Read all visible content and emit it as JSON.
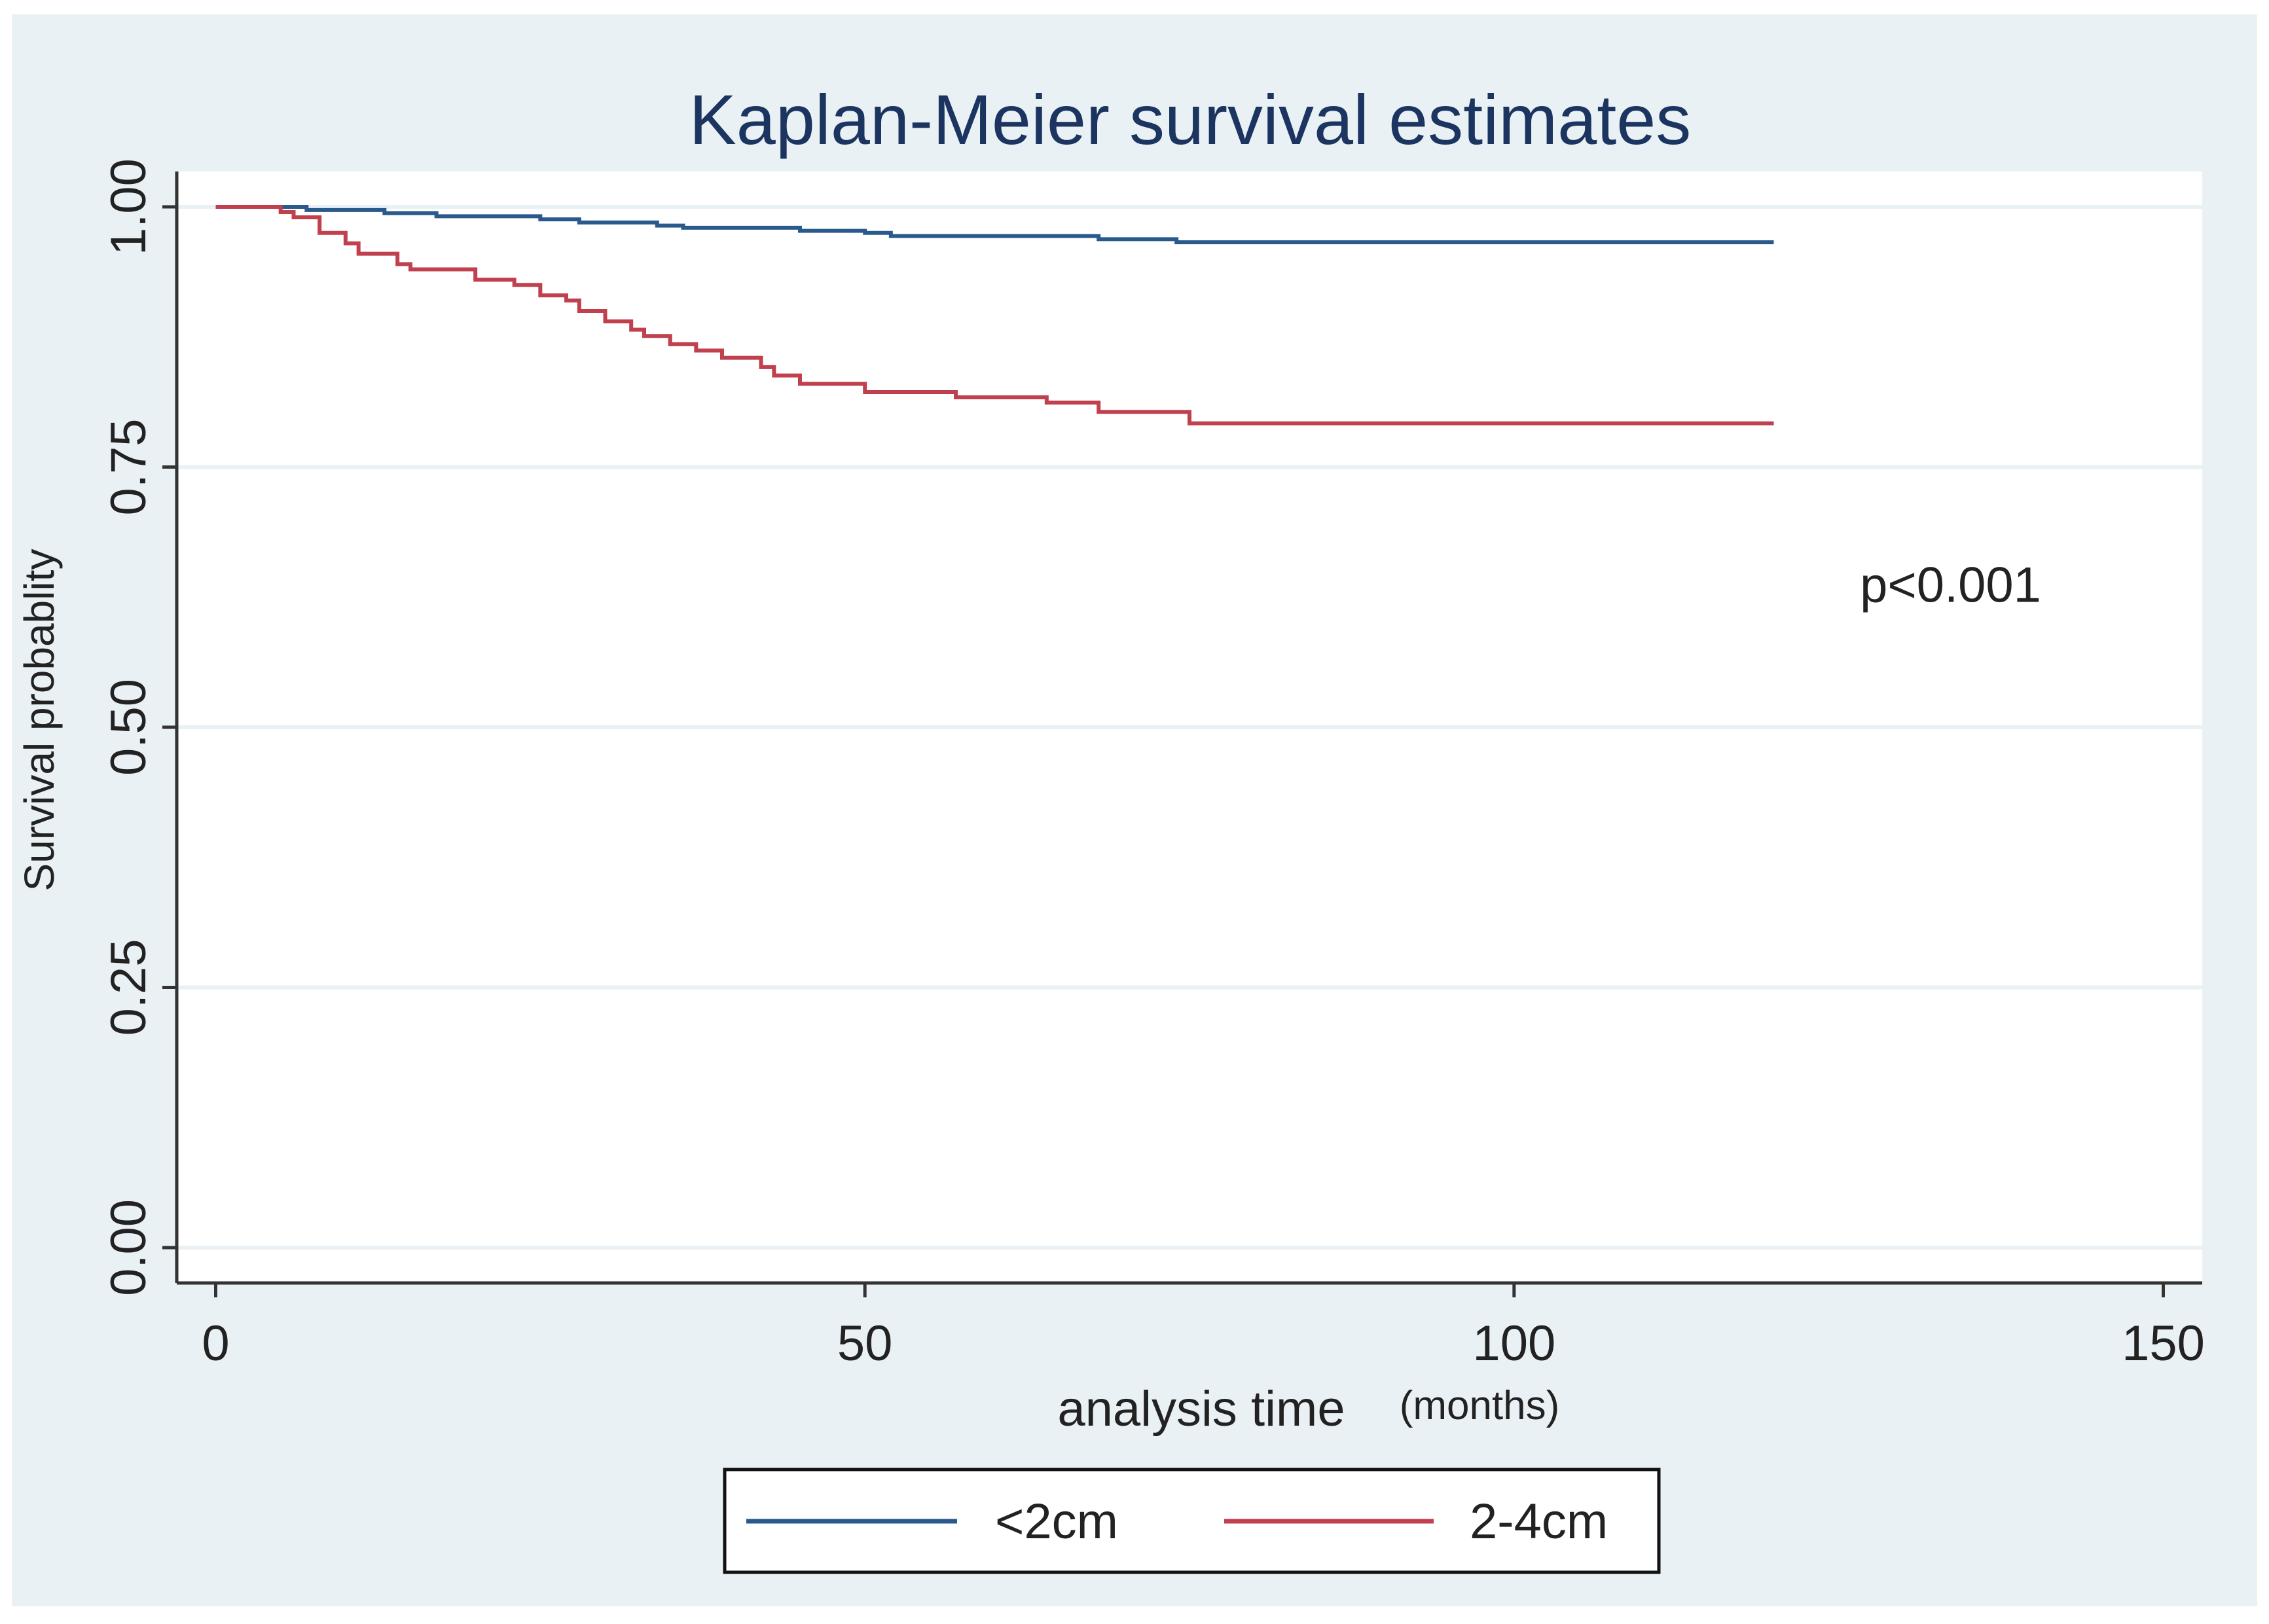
{
  "chart_data": {
    "type": "line",
    "title": "Kaplan-Meier survival estimates",
    "xlabel": "analysis time",
    "xlabel_unit": "(months)",
    "ylabel": "Survival probablity",
    "xlim": [
      -3,
      153
    ],
    "ylim": [
      -0.034,
      1.034
    ],
    "x_ticks": [
      0,
      50,
      100,
      150
    ],
    "x_tick_labels": [
      "0",
      "50",
      "100",
      "150"
    ],
    "y_ticks": [
      0,
      0.25,
      0.5,
      0.75,
      1.0
    ],
    "y_tick_labels": [
      "0.00",
      "0.25",
      "0.50",
      "0.75",
      "1.00"
    ],
    "grid": true,
    "legend_position": "bottom-center",
    "annotation": "p<0.001",
    "annotation_pos": [
      120,
      0.63
    ],
    "series": [
      {
        "name": "<2cm",
        "color": "#2a5a8c",
        "steps": [
          [
            0,
            1.0
          ],
          [
            7,
            0.997
          ],
          [
            13,
            0.994
          ],
          [
            17,
            0.991
          ],
          [
            25,
            0.988
          ],
          [
            28,
            0.985
          ],
          [
            34,
            0.982
          ],
          [
            36,
            0.98
          ],
          [
            45,
            0.977
          ],
          [
            50,
            0.975
          ],
          [
            52,
            0.972
          ],
          [
            68,
            0.969
          ],
          [
            74,
            0.966
          ],
          [
            120,
            0.966
          ]
        ]
      },
      {
        "name": "2-4cm",
        "color": "#c0404e",
        "steps": [
          [
            0,
            1.0
          ],
          [
            5,
            0.995
          ],
          [
            6,
            0.99
          ],
          [
            8,
            0.975
          ],
          [
            10,
            0.965
          ],
          [
            11,
            0.955
          ],
          [
            14,
            0.945
          ],
          [
            15,
            0.94
          ],
          [
            20,
            0.93
          ],
          [
            23,
            0.925
          ],
          [
            25,
            0.915
          ],
          [
            27,
            0.91
          ],
          [
            28,
            0.9
          ],
          [
            30,
            0.89
          ],
          [
            32,
            0.882
          ],
          [
            33,
            0.876
          ],
          [
            35,
            0.868
          ],
          [
            37,
            0.862
          ],
          [
            39,
            0.855
          ],
          [
            42,
            0.846
          ],
          [
            43,
            0.838
          ],
          [
            45,
            0.83
          ],
          [
            50,
            0.822
          ],
          [
            57,
            0.817
          ],
          [
            64,
            0.812
          ],
          [
            68,
            0.803
          ],
          [
            75,
            0.792
          ],
          [
            120,
            0.792
          ]
        ]
      }
    ]
  }
}
